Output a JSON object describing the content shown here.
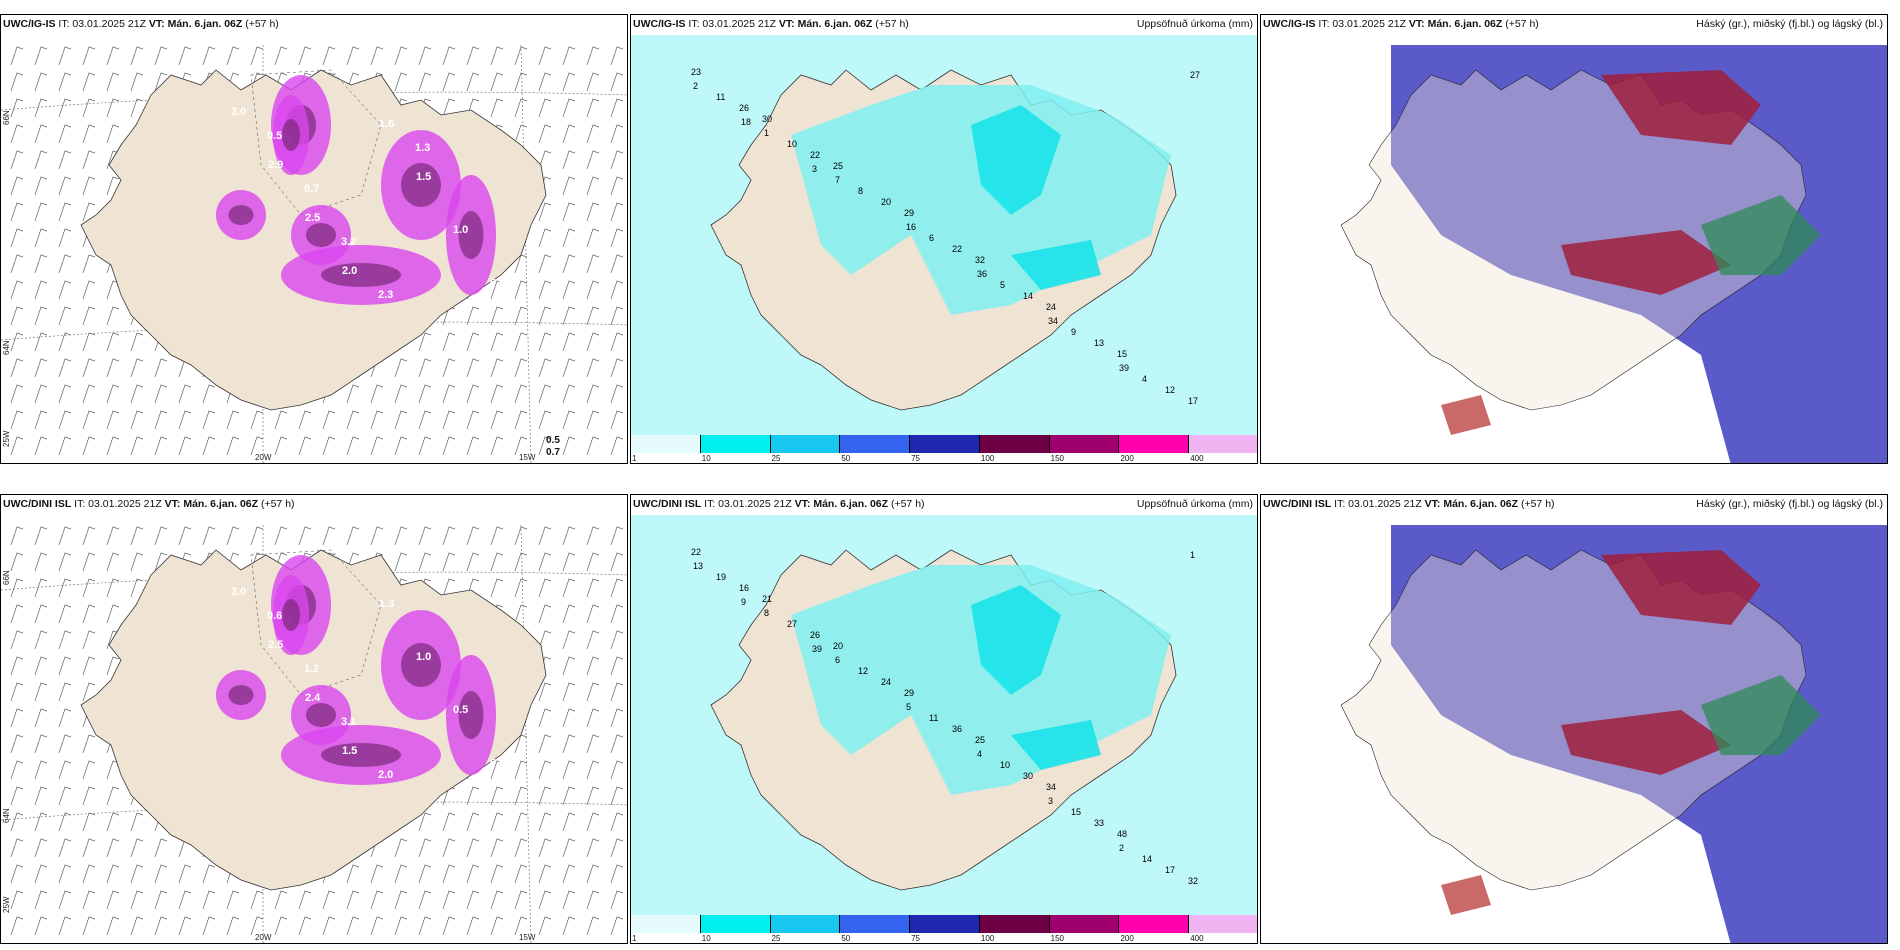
{
  "rows": [
    {
      "model": "UWC/IG-IS",
      "init": "IT: 03.01.2025 21Z",
      "valid_label": "VT:",
      "valid": "Mán. 6.jan. 06Z",
      "lead": "(+57 h)",
      "panel1_values": [
        "3.0",
        "2.9",
        "2.5",
        "2.0",
        "1.6",
        "1.5",
        "1.0",
        "0.9",
        "0.5",
        "0.7",
        "3.2",
        "2.3",
        "1.3"
      ],
      "panel1_extra": [
        "0.5",
        "0.7"
      ],
      "panel2_values": [
        "23",
        "30",
        "25",
        "29",
        "32",
        "24",
        "15",
        "17",
        "26",
        "22",
        "20",
        "22",
        "14",
        "13",
        "12",
        "11",
        "10",
        "8",
        "6",
        "5",
        "9",
        "4",
        "2",
        "1",
        "7",
        "16",
        "36",
        "34",
        "39",
        "27",
        "18",
        "3"
      ],
      "lon_labels": [
        "20W",
        "15W"
      ],
      "lat_labels": [
        "66N",
        "64N",
        "25W"
      ]
    },
    {
      "model": "UWC/DINI ISL",
      "init": "IT: 03.01.2025 21Z",
      "valid_label": "VT:",
      "valid": "Mán. 6.jan. 06Z",
      "lead": "(+57 h)",
      "panel1_values": [
        "3.0",
        "2.5",
        "2.4",
        "1.5",
        "1.3",
        "1.0",
        "0.5",
        "0.9",
        "0.6",
        "1.2",
        "3.1",
        "2.0"
      ],
      "panel1_extra": [],
      "panel2_values": [
        "22",
        "21",
        "20",
        "29",
        "25",
        "34",
        "48",
        "32",
        "16",
        "26",
        "24",
        "36",
        "30",
        "33",
        "17",
        "19",
        "27",
        "12",
        "11",
        "10",
        "15",
        "14",
        "13",
        "8",
        "6",
        "5",
        "4",
        "3",
        "2",
        "1",
        "9",
        "39"
      ],
      "lon_labels": [
        "20W",
        "15W"
      ],
      "lat_labels": [
        "66N",
        "64N",
        "25W"
      ]
    }
  ],
  "precip_title": "Uppsöfnuð úrkoma (mm)",
  "cloud_title": "Háský (gr.), miðský (fj.bl.) og lágský (bl.)",
  "colorbar": {
    "ticks": [
      "1",
      "10",
      "25",
      "50",
      "75",
      "100",
      "150",
      "200",
      "400"
    ],
    "colors": [
      "#e6fbfb",
      "#00f0f0",
      "#19c8f0",
      "#3264f0",
      "#2028b0",
      "#6e0046",
      "#a0006e",
      "#ff00aa",
      "#f0b4f0"
    ]
  }
}
